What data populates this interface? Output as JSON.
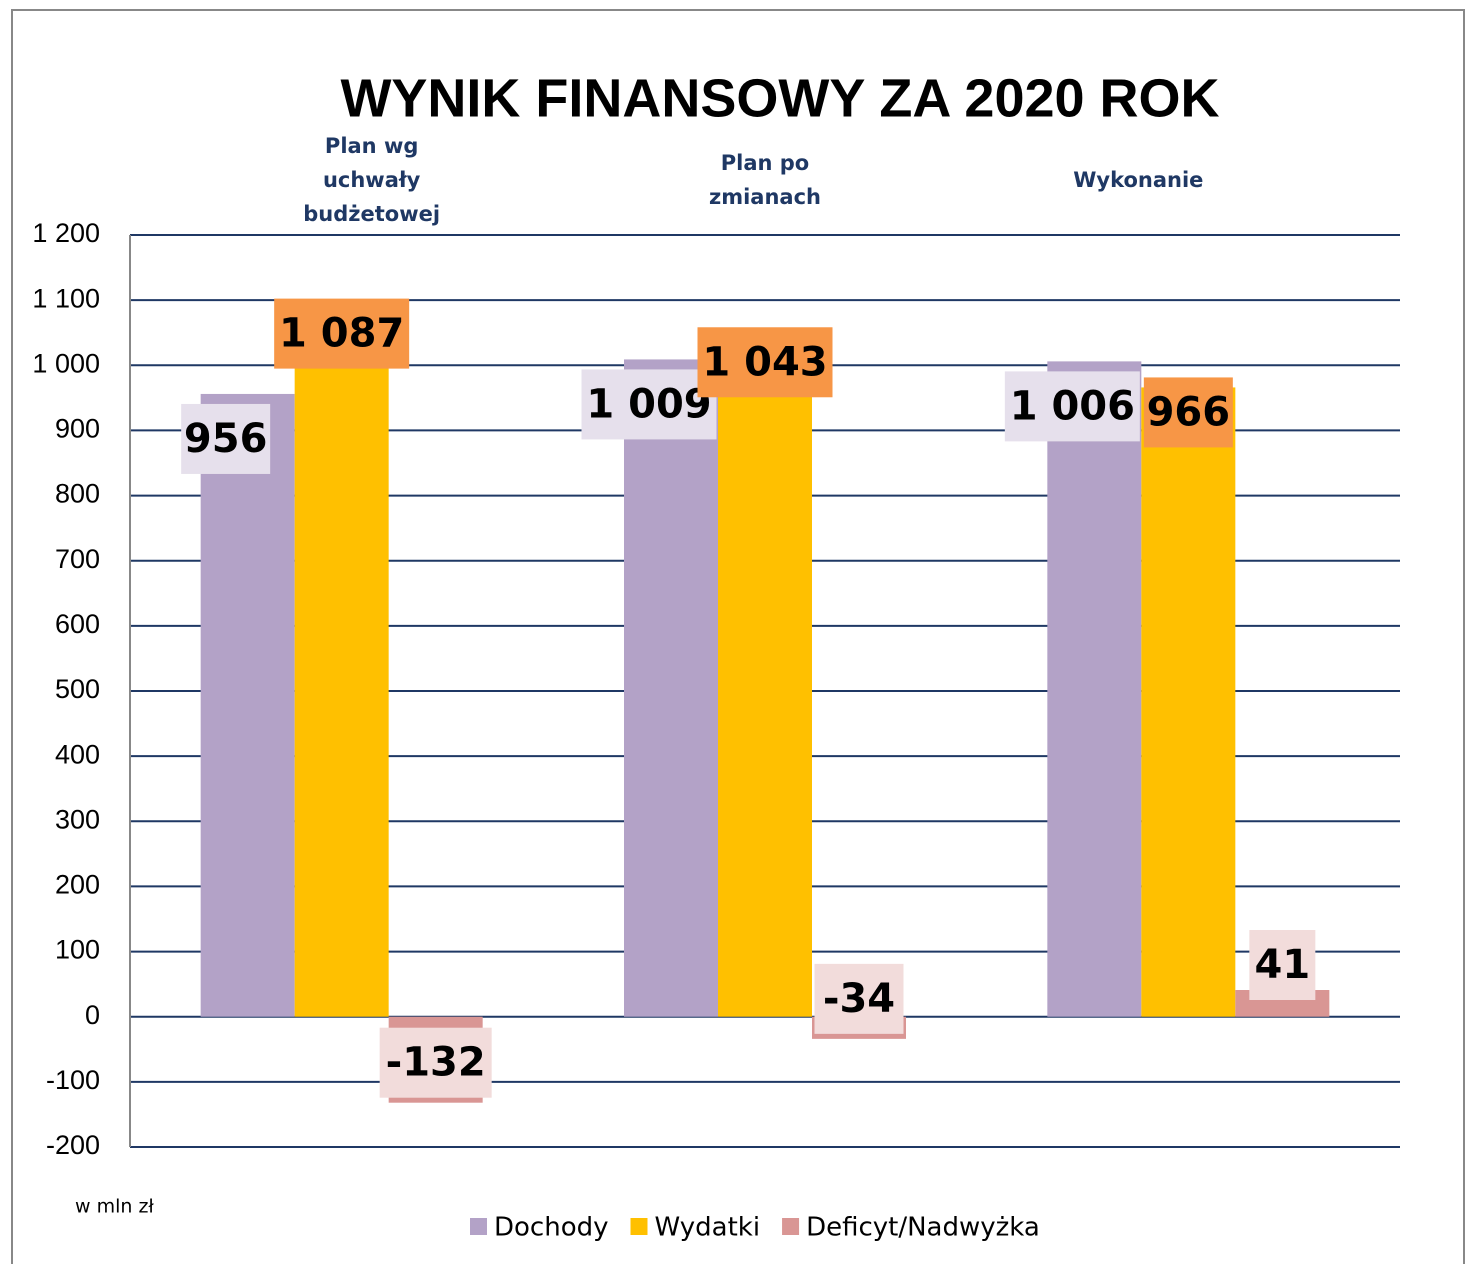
{
  "chart_data": {
    "type": "bar",
    "title": "WYNIK FINANSOWY ZA 2020 ROK",
    "note": "w mln zł",
    "categories": [
      "Plan wg uchwały budżetowej",
      "Plan po zmianach",
      "Wykonanie"
    ],
    "series": [
      {
        "name": "Dochody",
        "color": "#b3a2c7",
        "label_color": "#e6e0ec",
        "values": [
          956,
          1009,
          1006
        ],
        "value_labels": [
          "956",
          "1 009",
          "1 006"
        ]
      },
      {
        "name": "Wydatki",
        "color": "#ffc000",
        "label_color": "#f79646",
        "values": [
          1087,
          1043,
          966
        ],
        "value_labels": [
          "1 087",
          "1 043",
          "966"
        ]
      },
      {
        "name": "Deficyt/Nadwyżka",
        "color": "#d99694",
        "label_color": "#f2dcdb",
        "values": [
          -132,
          -34,
          41
        ]
      }
    ],
    "ylim": [
      -200,
      1200
    ],
    "yticks": [
      -200,
      -100,
      0,
      100,
      200,
      300,
      400,
      500,
      600,
      700,
      800,
      900,
      {
        "value": 1000,
        "label": "1 000"
      },
      {
        "value": 1100,
        "label": "1 100"
      },
      {
        "value": 1200,
        "label": "1 200"
      }
    ],
    "grid": true,
    "grid_color": "#1f3864",
    "legend": "bottom"
  }
}
